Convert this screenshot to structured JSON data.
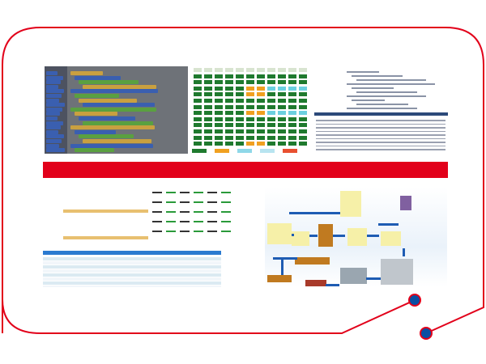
{
  "colors": {
    "frame": "#e2001a",
    "accent_bar": "#e2001a",
    "dot_fill": "#0a4ea2",
    "block_green": "#1f7a2e",
    "block_orange": "#f0a020",
    "block_cyan": "#6cd0e0",
    "code_header": "#2c4a7a",
    "flow_arrow": "#1e5cb3",
    "flow_box": "#f6f0a8",
    "crate": "#c07a20"
  },
  "icons": {
    "connector_dot_1": "dot-icon",
    "connector_dot_2": "dot-icon",
    "truck": "truck-icon",
    "forklift": "forklift-icon",
    "barcode": "barcode-icon",
    "computer": "computer-icon"
  }
}
